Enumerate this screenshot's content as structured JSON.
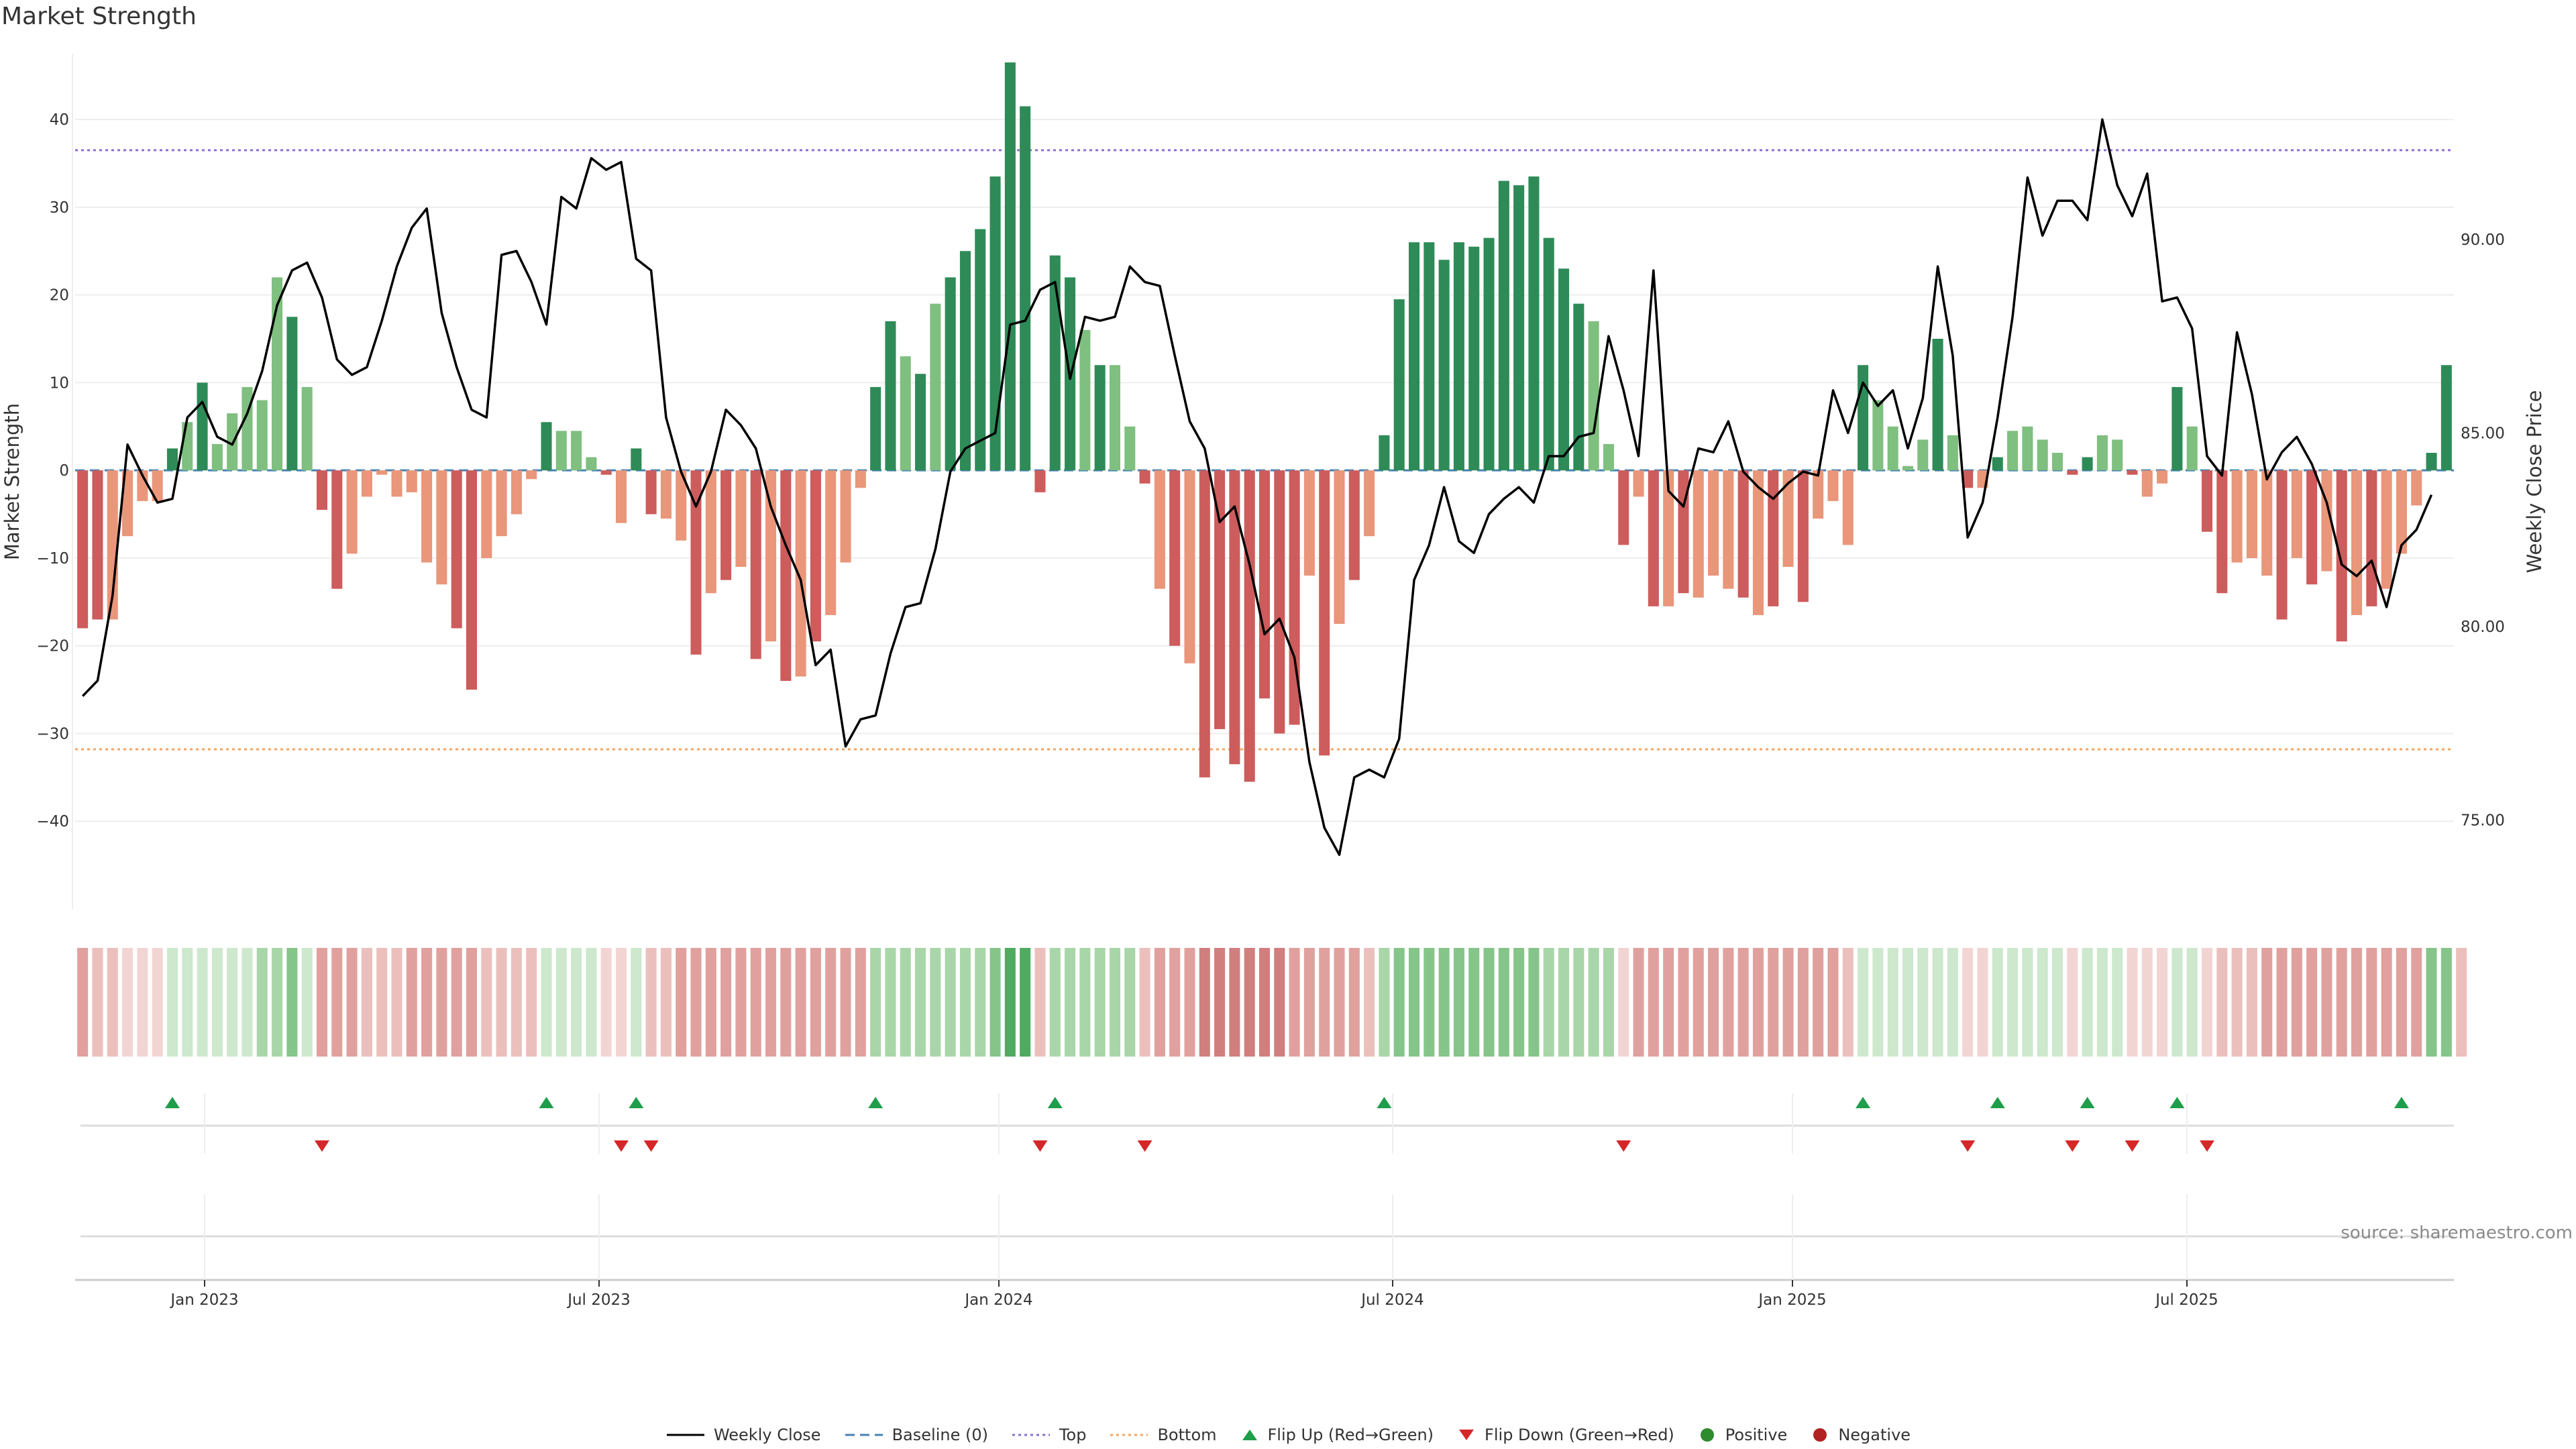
{
  "title": "Market Strength",
  "source": "source: sharemaestro.com",
  "colors": {
    "strong_green": "#2e8b57",
    "light_green": "#7fbf7f",
    "strong_red": "#cd5c5c",
    "light_red": "#e9967a",
    "price_line": "#000000",
    "baseline": "#4682b4",
    "top_line": "#8a6fd1",
    "bottom_line": "#f4a460",
    "flip_up": "#1e9e4a",
    "flip_down": "#d62728",
    "positive": "#2e8b2e",
    "negative": "#b22222"
  },
  "chart_data": {
    "type": "bar",
    "title": "Market Strength",
    "ylabel": "Market Strength",
    "y2label": "Weekly Close Price",
    "ylim": [
      -50,
      47.5
    ],
    "y2lim": [
      72.7,
      94.8
    ],
    "yticks": [
      "40",
      "30",
      "20",
      "10",
      "0",
      "−10",
      "−20",
      "−30",
      "−40"
    ],
    "y2ticks": [
      "90.00",
      "85.00",
      "80.00",
      "75.00"
    ],
    "xticks": [
      "Jan 2023",
      "Jul 2023",
      "Jan 2024",
      "Jul 2024",
      "Jan 2025",
      "Jul 2025"
    ],
    "top_level": 36.5,
    "bottom_level": -31.8,
    "strength": [
      -18,
      -17,
      -17,
      -7.5,
      -3.5,
      -3.5,
      2.5,
      5.5,
      10,
      3,
      6.5,
      9.5,
      8,
      22,
      17.5,
      9.5,
      -4.5,
      -13.5,
      -9.5,
      -3,
      -0.5,
      -3,
      -2.5,
      -10.5,
      -13,
      -18,
      -25,
      -10,
      -7.5,
      -5,
      -1,
      5.5,
      4.5,
      4.5,
      1.5,
      -0.5,
      -6,
      2.5,
      -5,
      -5.5,
      -8,
      -21,
      -14,
      -12.5,
      -11,
      -21.5,
      -19.5,
      -24,
      -23.5,
      -19.5,
      -16.5,
      -10.5,
      -2,
      9.5,
      17,
      13,
      11,
      19,
      22,
      25,
      27.5,
      33.5,
      46.5,
      41.5,
      -2.5,
      24.5,
      22,
      16,
      12,
      12,
      5,
      -1.5,
      -13.5,
      -20,
      -22,
      -35,
      -29.5,
      -33.5,
      -35.5,
      -26,
      -30,
      -29,
      -12,
      -32.5,
      -17.5,
      -12.5,
      -7.5,
      4,
      19.5,
      26,
      26,
      24,
      26,
      25.5,
      26.5,
      33,
      32.5,
      33.5,
      26.5,
      23,
      19,
      17,
      3,
      -8.5,
      -3,
      -15.5,
      -15.5,
      -14,
      -14.5,
      -12,
      -13.5,
      -14.5,
      -16.5,
      -15.5,
      -11,
      -15,
      -5.5,
      -3.5,
      -8.5,
      12,
      8,
      5,
      0.5,
      3.5,
      15,
      4,
      -2,
      -2,
      1.5,
      4.5,
      5,
      3.5,
      2,
      -0.5,
      1.5,
      4,
      3.5,
      -0.5,
      -3,
      -1.5,
      9.5,
      5,
      -7,
      -14,
      -10.5,
      -10,
      -12,
      -17,
      -10,
      -13,
      -11.5,
      -19.5,
      -16.5,
      -15.5,
      -13.5,
      -9.5,
      -4,
      2,
      12
    ],
    "price": [
      78.2,
      78.6,
      80.8,
      84.7,
      83.9,
      83.2,
      83.3,
      85.4,
      85.8,
      84.9,
      84.7,
      85.5,
      86.6,
      88.3,
      89.2,
      89.4,
      88.5,
      86.9,
      86.5,
      86.7,
      87.9,
      89.3,
      90.3,
      90.8,
      88.1,
      86.7,
      85.6,
      85.4,
      89.6,
      89.7,
      88.9,
      87.8,
      91.1,
      90.8,
      92.1,
      91.8,
      92,
      89.5,
      89.2,
      85.4,
      84,
      83.1,
      84,
      85.6,
      85.2,
      84.6,
      83.1,
      82.1,
      81.2,
      79,
      79.4,
      76.9,
      77.6,
      77.7,
      79.3,
      80.5,
      80.6,
      82,
      84,
      84.6,
      84.8,
      85,
      87.8,
      87.9,
      88.7,
      88.9,
      86.4,
      88,
      87.9,
      88,
      89.3,
      88.9,
      88.8,
      87,
      85.3,
      84.6,
      82.7,
      83.1,
      81.6,
      79.8,
      80.2,
      79.2,
      76.5,
      74.8,
      74.1,
      76.1,
      76.3,
      76.1,
      77.1,
      81.2,
      82.1,
      83.6,
      82.2,
      81.9,
      82.9,
      83.3,
      83.6,
      83.2,
      84.4,
      84.4,
      84.9,
      85,
      87.5,
      86.1,
      84.4,
      89.2,
      83.5,
      83.1,
      84.6,
      84.5,
      85.3,
      84,
      83.6,
      83.3,
      83.7,
      84,
      83.9,
      86.1,
      85,
      86.3,
      85.7,
      86.1,
      84.6,
      85.9,
      89.3,
      87,
      82.3,
      83.2,
      85.4,
      88,
      91.6,
      90.1,
      91,
      91,
      90.5,
      93.1,
      91.4,
      90.6,
      91.7,
      88.4,
      88.5,
      87.7,
      84.4,
      83.9,
      87.6,
      86,
      83.8,
      84.5,
      84.9,
      84.2,
      83.2,
      81.6,
      81.3,
      81.7,
      80.5,
      82.1,
      82.5,
      83.4
    ],
    "heat_levels": [
      3,
      2,
      2,
      1,
      1,
      1,
      1,
      1,
      1,
      1,
      1,
      1,
      2,
      2,
      3,
      1,
      3,
      3,
      3,
      2,
      2,
      2,
      3,
      3,
      3,
      3,
      3,
      2,
      2,
      2,
      2,
      1,
      1,
      1,
      1,
      1,
      1,
      1,
      2,
      2,
      3,
      3,
      3,
      3,
      3,
      3,
      3,
      3,
      3,
      3,
      3,
      3,
      3,
      2,
      2,
      2,
      2,
      2,
      2,
      2,
      2,
      3,
      4,
      4,
      2,
      2,
      2,
      2,
      2,
      2,
      2,
      2,
      3,
      3,
      3,
      4,
      4,
      4,
      4,
      4,
      4,
      3,
      3,
      3,
      3,
      3,
      2,
      2,
      3,
      3,
      3,
      3,
      3,
      3,
      3,
      3,
      3,
      3,
      2,
      2,
      2,
      2,
      2,
      1,
      3,
      3,
      3,
      3,
      3,
      3,
      3,
      3,
      3,
      3,
      3,
      3,
      3,
      3,
      2,
      1,
      1,
      1,
      1,
      1,
      1,
      1,
      1,
      1,
      1,
      1,
      1,
      1,
      1,
      1,
      1,
      1,
      1,
      1,
      1,
      1,
      1,
      1,
      1,
      2,
      2,
      2,
      3,
      3,
      3,
      3,
      3,
      3,
      3,
      3,
      3,
      3,
      3,
      3,
      3,
      2
    ],
    "flip_up_indices": [
      6,
      31,
      37,
      53,
      65,
      87,
      119,
      128,
      134,
      140,
      155
    ],
    "flip_down_indices": [
      16,
      36,
      38,
      64,
      71,
      103,
      126,
      133,
      137,
      142
    ]
  },
  "legend": [
    {
      "label": "Weekly Close",
      "kind": "line-solid"
    },
    {
      "label": "Baseline (0)",
      "kind": "line-dash-blue"
    },
    {
      "label": "Top",
      "kind": "line-dot-purple"
    },
    {
      "label": "Bottom",
      "kind": "line-dot-orange"
    },
    {
      "label": "Flip Up (Red→Green)",
      "kind": "tri-up"
    },
    {
      "label": "Flip Down (Green→Red)",
      "kind": "tri-down"
    },
    {
      "label": "Positive",
      "kind": "dot-green"
    },
    {
      "label": "Negative",
      "kind": "dot-red"
    }
  ]
}
